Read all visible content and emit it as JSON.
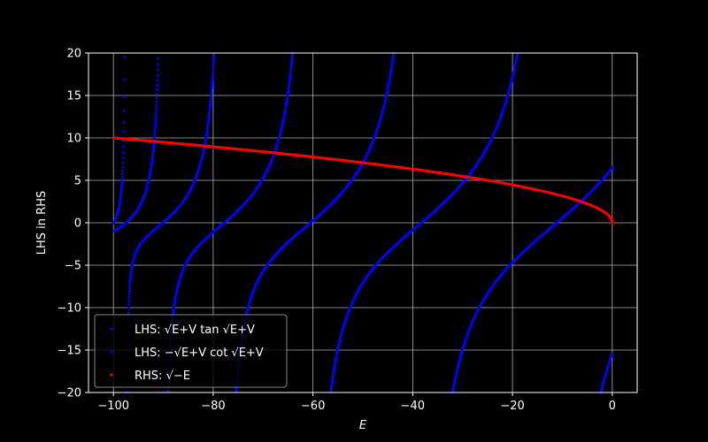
{
  "chart_data": {
    "type": "scatter",
    "title": "",
    "xlabel": "E",
    "ylabel": "LHS in RHS",
    "xlim": [
      -105,
      5
    ],
    "ylim": [
      -20,
      20
    ],
    "x_ticks": [
      -100,
      -80,
      -60,
      -40,
      -20,
      0
    ],
    "x_tick_labels": [
      "−100",
      "−80",
      "−60",
      "−40",
      "−20",
      "0"
    ],
    "y_ticks": [
      -20,
      -15,
      -10,
      -5,
      0,
      5,
      10,
      15,
      20
    ],
    "y_tick_labels": [
      "−20",
      "−15",
      "−10",
      "−5",
      "0",
      "5",
      "10",
      "15",
      "20"
    ],
    "grid": true,
    "legend_position": "lower-left",
    "V": 100,
    "x_range": [
      -100,
      0
    ],
    "series": [
      {
        "name": "LHS: √E+V tan √E+V",
        "formula": "sqrt(E+V)*tan(sqrt(E+V))",
        "color": "#0000ff"
      },
      {
        "name": "LHS: −√E+V cot √E+V",
        "formula": "-sqrt(E+V)*cot(sqrt(E+V))",
        "color": "#0000ff"
      },
      {
        "name": "RHS: √−E",
        "formula": "sqrt(-E)",
        "color": "#ff0000"
      }
    ]
  }
}
